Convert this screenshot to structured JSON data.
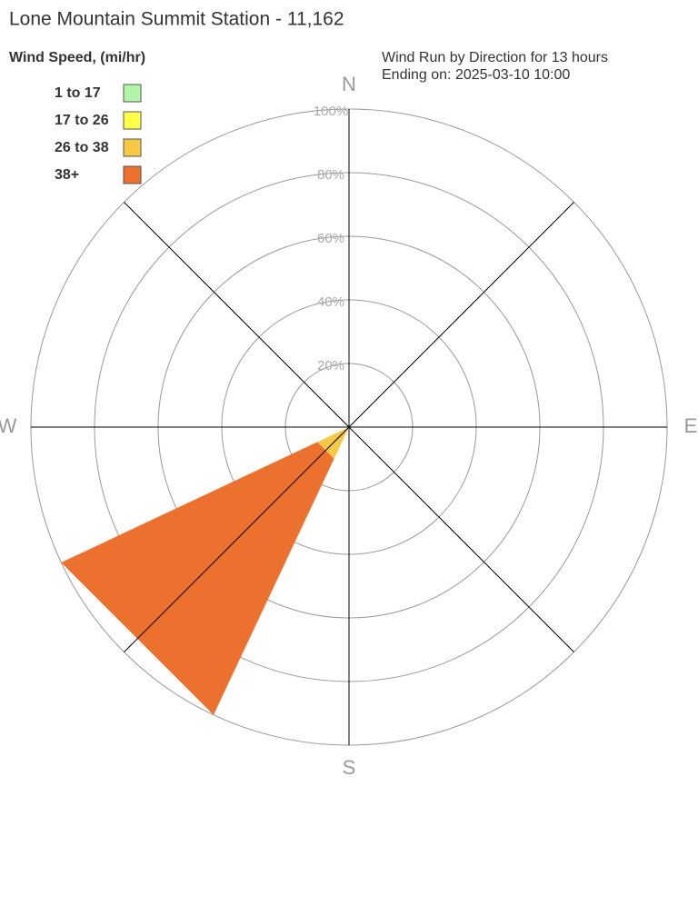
{
  "chart_data": {
    "type": "windrose",
    "title": "Lone Mountain Summit Station - 11,162",
    "legend_title": "Wind Speed, (mi/hr)",
    "subtitle": [
      "Wind Run by Direction for 13 hours",
      "Ending on: 2025-03-10 10:00"
    ],
    "categories": [
      "N",
      null,
      "E",
      null,
      "S",
      null,
      "W",
      null
    ],
    "series": [
      {
        "name": "1 to 17",
        "color": "#b3f5a8",
        "values": [
          0,
          0,
          0,
          0,
          0,
          0,
          0,
          0
        ]
      },
      {
        "name": "17 to 26",
        "color": "#ffff48",
        "values": [
          0,
          0,
          0,
          0,
          0,
          0,
          0,
          0
        ]
      },
      {
        "name": "26 to 38",
        "color": "#f7c845",
        "values": [
          0,
          0,
          0,
          0,
          0,
          11,
          0,
          0
        ]
      },
      {
        "name": "38+",
        "color": "#ec702e",
        "values": [
          0,
          0,
          0,
          0,
          0,
          89,
          0,
          0
        ]
      }
    ],
    "rlim": [
      0,
      100
    ],
    "rticks": [
      {
        "value": 20,
        "label": "20%"
      },
      {
        "value": 40,
        "label": "40%"
      },
      {
        "value": 60,
        "label": "60%"
      },
      {
        "value": 80,
        "label": "80%"
      },
      {
        "value": 100,
        "label": "100%"
      }
    ]
  }
}
